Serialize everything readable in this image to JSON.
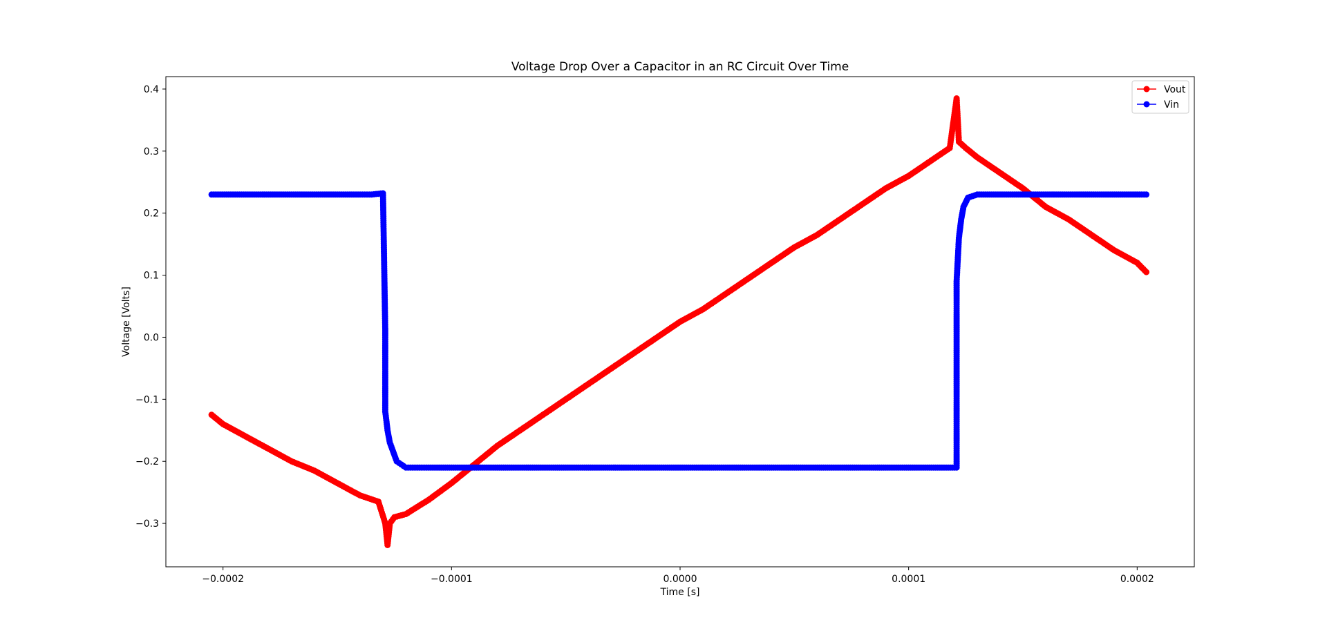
{
  "chart_data": {
    "type": "line",
    "title": "Voltage Drop Over a Capacitor in an RC Circuit Over Time",
    "xlabel": "Time [s]",
    "ylabel": "Voltage [Volts]",
    "xlim": [
      -0.000225,
      0.000225
    ],
    "ylim": [
      -0.37,
      0.42
    ],
    "x_ticks": [
      -0.0002,
      -0.0001,
      0.0,
      0.0001,
      0.0002
    ],
    "x_tick_labels": [
      "−0.0002",
      "−0.0001",
      "0.0000",
      "0.0001",
      "0.0002"
    ],
    "y_ticks": [
      -0.3,
      -0.2,
      -0.1,
      0.0,
      0.1,
      0.2,
      0.3,
      0.4
    ],
    "y_tick_labels": [
      "−0.3",
      "−0.2",
      "−0.1",
      "0.0",
      "0.1",
      "0.2",
      "0.3",
      "0.4"
    ],
    "grid": false,
    "legend_position": "top-right",
    "marker": "circle",
    "series": [
      {
        "name": "Vout",
        "color": "#ff0000",
        "x": [
          -0.000205,
          -0.0002,
          -0.00019,
          -0.00018,
          -0.00017,
          -0.00016,
          -0.00015,
          -0.00014,
          -0.000132,
          -0.000129,
          -0.000128,
          -0.000127,
          -0.000125,
          -0.00012,
          -0.00011,
          -0.0001,
          -9e-05,
          -8e-05,
          -7e-05,
          -6e-05,
          -5e-05,
          -4e-05,
          -3e-05,
          -2e-05,
          -1e-05,
          0.0,
          1e-05,
          2e-05,
          3e-05,
          4e-05,
          5e-05,
          6e-05,
          7e-05,
          8e-05,
          9e-05,
          0.0001,
          0.00011,
          0.000118,
          0.000121,
          0.000122,
          0.000125,
          0.00013,
          0.00014,
          0.00015,
          0.00016,
          0.00017,
          0.00018,
          0.00019,
          0.0002,
          0.000204
        ],
        "y": [
          -0.125,
          -0.14,
          -0.16,
          -0.18,
          -0.2,
          -0.215,
          -0.235,
          -0.255,
          -0.265,
          -0.3,
          -0.335,
          -0.3,
          -0.29,
          -0.285,
          -0.262,
          -0.235,
          -0.205,
          -0.175,
          -0.15,
          -0.125,
          -0.1,
          -0.075,
          -0.05,
          -0.025,
          0.0,
          0.025,
          0.045,
          0.07,
          0.095,
          0.12,
          0.145,
          0.165,
          0.19,
          0.215,
          0.24,
          0.26,
          0.285,
          0.305,
          0.385,
          0.315,
          0.305,
          0.29,
          0.265,
          0.24,
          0.21,
          0.19,
          0.165,
          0.14,
          0.12,
          0.105
        ]
      },
      {
        "name": "Vin",
        "color": "#0000ff",
        "x": [
          -0.000205,
          -0.00019,
          -0.00018,
          -0.00017,
          -0.00016,
          -0.00015,
          -0.00014,
          -0.000135,
          -0.00013,
          -0.000129,
          -0.000129,
          -0.000128,
          -0.000127,
          -0.000126,
          -0.000125,
          -0.000124,
          -0.000122,
          -0.00012,
          -0.000115,
          -0.00011,
          -0.0001,
          -8e-05,
          -6e-05,
          -4e-05,
          -2e-05,
          0.0,
          2e-05,
          4e-05,
          6e-05,
          8e-05,
          0.0001,
          0.00011,
          0.000121,
          0.000121,
          0.000121,
          0.000122,
          0.000123,
          0.000124,
          0.000126,
          0.00013,
          0.00014,
          0.00015,
          0.00016,
          0.00017,
          0.00018,
          0.00019,
          0.0002,
          0.000204
        ],
        "y": [
          0.23,
          0.23,
          0.23,
          0.23,
          0.23,
          0.23,
          0.23,
          0.23,
          0.232,
          0.01,
          -0.12,
          -0.15,
          -0.17,
          -0.18,
          -0.19,
          -0.2,
          -0.205,
          -0.21,
          -0.21,
          -0.21,
          -0.21,
          -0.21,
          -0.21,
          -0.21,
          -0.21,
          -0.21,
          -0.21,
          -0.21,
          -0.21,
          -0.21,
          -0.21,
          -0.21,
          -0.21,
          -0.095,
          0.09,
          0.16,
          0.19,
          0.21,
          0.225,
          0.23,
          0.23,
          0.23,
          0.23,
          0.23,
          0.23,
          0.23,
          0.23,
          0.23
        ]
      }
    ]
  }
}
